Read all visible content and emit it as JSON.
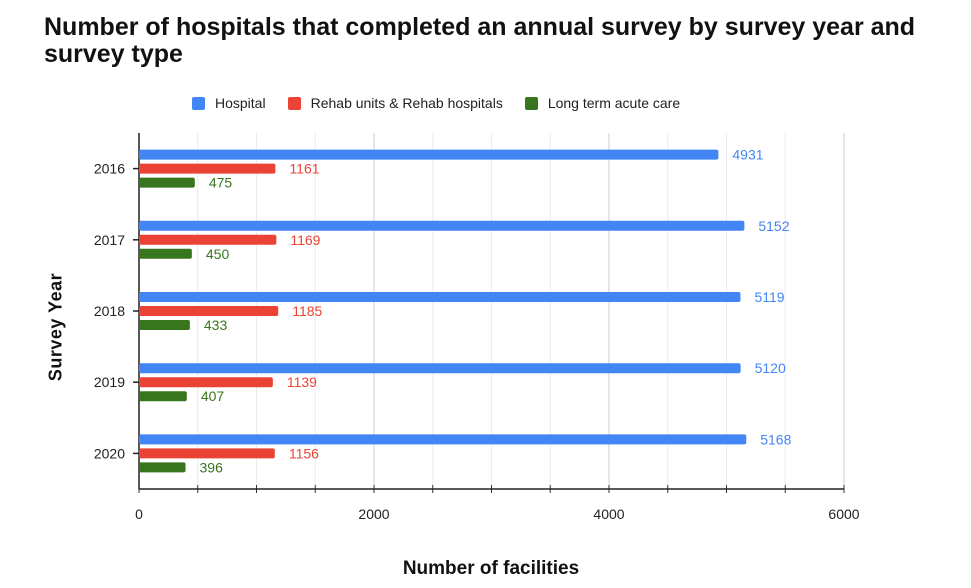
{
  "title": "Number of hospitals that completed an annual survey by survey year and survey type",
  "colors": {
    "series": [
      "#4285f4",
      "#ea4335",
      "#38761d"
    ],
    "grid": "#d9d9d9",
    "axis": "#222222"
  },
  "chart_data": {
    "type": "bar",
    "orientation": "horizontal",
    "title": "Number of hospitals that completed an annual survey by survey year and survey type",
    "xlabel": "Number of facilities",
    "ylabel": "Survey Year",
    "categories": [
      "2016",
      "2017",
      "2018",
      "2019",
      "2020"
    ],
    "series": [
      {
        "name": "Hospital",
        "values": [
          4931,
          5152,
          5119,
          5120,
          5168
        ]
      },
      {
        "name": "Rehab units & Rehab hospitals",
        "values": [
          1161,
          1169,
          1185,
          1139,
          1156
        ]
      },
      {
        "name": "Long term acute care",
        "values": [
          475,
          450,
          433,
          407,
          396
        ]
      }
    ],
    "xlim": [
      0,
      6000
    ],
    "xticks": [
      0,
      2000,
      4000,
      6000
    ],
    "legend_position": "top",
    "grid": true,
    "data_labels": true
  }
}
